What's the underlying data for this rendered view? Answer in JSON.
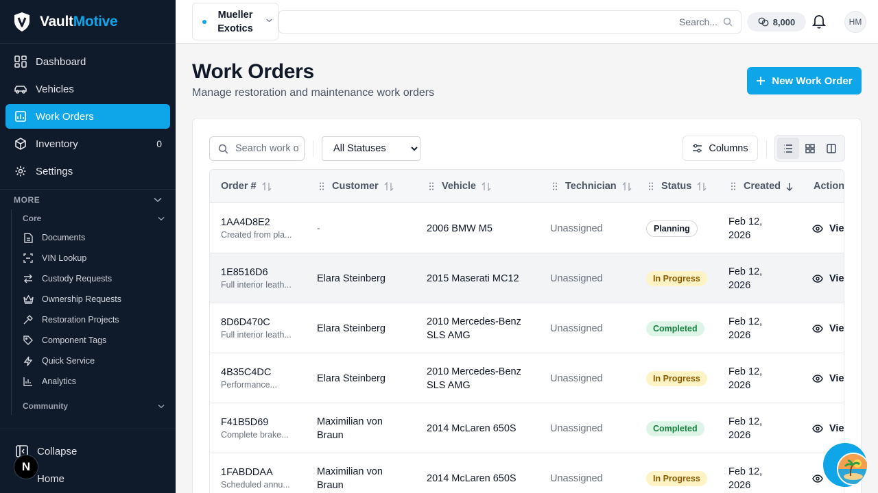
{
  "brand": {
    "name_part1": "Vault",
    "name_part2": "Motive"
  },
  "sidebar": {
    "nav": [
      {
        "label": "Dashboard",
        "icon": "dashboard-icon"
      },
      {
        "label": "Vehicles",
        "icon": "car-icon"
      },
      {
        "label": "Work Orders",
        "icon": "clipboard-icon",
        "active": true
      },
      {
        "label": "Inventory",
        "icon": "box-icon",
        "count": "0"
      },
      {
        "label": "Settings",
        "icon": "gear-icon"
      }
    ],
    "more_label": "MORE",
    "groups": {
      "core_label": "Core",
      "core_items": [
        {
          "label": "Documents",
          "icon": "document-icon"
        },
        {
          "label": "VIN Lookup",
          "icon": "scan-icon"
        },
        {
          "label": "Custody Requests",
          "icon": "transfer-icon"
        },
        {
          "label": "Ownership Requests",
          "icon": "crown-icon"
        },
        {
          "label": "Restoration Projects",
          "icon": "hammer-icon"
        },
        {
          "label": "Component Tags",
          "icon": "tag-icon"
        },
        {
          "label": "Quick Service",
          "icon": "bolt-icon"
        },
        {
          "label": "Analytics",
          "icon": "chart-icon"
        }
      ],
      "community_label": "Community"
    },
    "footer": {
      "collapse_label": "Collapse",
      "home_label": "Home",
      "badge_letter": "N"
    }
  },
  "topbar": {
    "org_name": "Mueller Exotics",
    "search_placeholder": "Search...",
    "credits": "8,000",
    "avatar_initials": "HM"
  },
  "page": {
    "title": "Work Orders",
    "subtitle": "Manage restoration and maintenance work orders",
    "new_button": "New Work Order"
  },
  "filters": {
    "search_placeholder": "Search work orders...",
    "status_selected": "All Statuses",
    "columns_label": "Columns"
  },
  "table": {
    "headers": {
      "order": "Order #",
      "customer": "Customer",
      "vehicle": "Vehicle",
      "technician": "Technician",
      "status": "Status",
      "created": "Created",
      "actions": "Actions"
    },
    "rows": [
      {
        "id": "1AA4D8E2",
        "desc": "Created from pla...",
        "customer": "-",
        "vehicle": "2006 BMW M5",
        "technician": "Unassigned",
        "status": "Planning",
        "status_kind": "planning",
        "created": "Feb 12, 2026",
        "action": "View"
      },
      {
        "id": "1E8516D6",
        "desc": "Full interior leath...",
        "customer": "Elara Steinberg",
        "vehicle": "2015 Maserati MC12",
        "technician": "Unassigned",
        "status": "In Progress",
        "status_kind": "inprogress",
        "created": "Feb 12, 2026",
        "action": "View"
      },
      {
        "id": "8D6D470C",
        "desc": "Full interior leath...",
        "customer": "Elara Steinberg",
        "vehicle": "2010 Mercedes-Benz SLS AMG",
        "technician": "Unassigned",
        "status": "Completed",
        "status_kind": "completed",
        "created": "Feb 12, 2026",
        "action": "View"
      },
      {
        "id": "4B35C4DC",
        "desc": "Performance...",
        "customer": "Elara Steinberg",
        "vehicle": "2010 Mercedes-Benz SLS AMG",
        "technician": "Unassigned",
        "status": "In Progress",
        "status_kind": "inprogress",
        "created": "Feb 12, 2026",
        "action": "View"
      },
      {
        "id": "F41B5D69",
        "desc": "Complete brake...",
        "customer": "Maximilian von Braun",
        "vehicle": "2014 McLaren 650S",
        "technician": "Unassigned",
        "status": "Completed",
        "status_kind": "completed",
        "created": "Feb 12, 2026",
        "action": "View"
      },
      {
        "id": "1FABDDAA",
        "desc": "Scheduled annu...",
        "customer": "Maximilian von Braun",
        "vehicle": "2014 McLaren 650S",
        "technician": "Unassigned",
        "status": "In Progress",
        "status_kind": "inprogress",
        "created": "Feb 12, 2026",
        "action": "View"
      }
    ]
  },
  "colors": {
    "accent": "#0ea5e9",
    "sidebar_bg": "#0f1a2b"
  }
}
